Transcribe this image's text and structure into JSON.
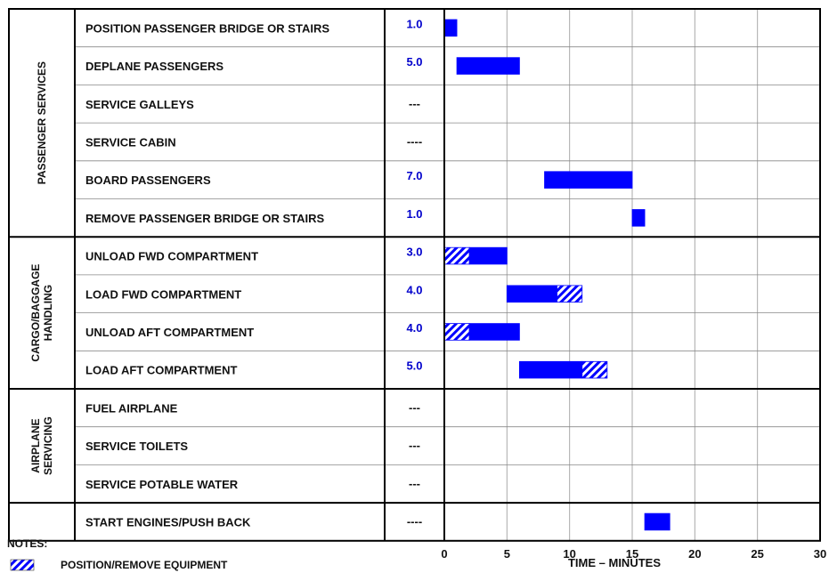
{
  "chart_data": {
    "type": "gantt",
    "x_axis": {
      "label": "TIME – MINUTES",
      "min": 0,
      "max": 30,
      "ticks": [
        0,
        5,
        10,
        15,
        20,
        25,
        30
      ],
      "grid": true
    },
    "groups": [
      {
        "name": "PASSENGER SERVICES",
        "lines": [
          "PASSENGER SERVICES"
        ],
        "row_start": 0,
        "row_count": 6
      },
      {
        "name": "CARGO/BAGGAGE HANDLING",
        "lines": [
          "CARGO/BAGGAGE",
          "HANDLING"
        ],
        "row_start": 6,
        "row_count": 4
      },
      {
        "name": "AIRPLANE SERVICING",
        "lines": [
          "AIRPLANE",
          "SERVICING"
        ],
        "row_start": 10,
        "row_count": 3
      },
      {
        "name": "",
        "lines": [],
        "row_start": 13,
        "row_count": 1
      }
    ],
    "tasks": [
      {
        "name": "POSITION PASSENGER BRIDGE OR STAIRS",
        "duration": "1.0",
        "segments": [
          {
            "start": 0,
            "end": 1,
            "style": "solid"
          }
        ]
      },
      {
        "name": "DEPLANE PASSENGERS",
        "duration": "5.0",
        "segments": [
          {
            "start": 1,
            "end": 6,
            "style": "solid"
          }
        ]
      },
      {
        "name": "SERVICE GALLEYS",
        "duration": "---",
        "segments": []
      },
      {
        "name": "SERVICE CABIN",
        "duration": "----",
        "segments": []
      },
      {
        "name": "BOARD PASSENGERS",
        "duration": "7.0",
        "segments": [
          {
            "start": 8,
            "end": 15,
            "style": "solid"
          }
        ]
      },
      {
        "name": "REMOVE PASSENGER BRIDGE OR STAIRS",
        "duration": "1.0",
        "segments": [
          {
            "start": 15,
            "end": 16,
            "style": "solid"
          }
        ]
      },
      {
        "name": "UNLOAD FWD COMPARTMENT",
        "duration": "3.0",
        "segments": [
          {
            "start": 0,
            "end": 2,
            "style": "hatched"
          },
          {
            "start": 2,
            "end": 5,
            "style": "solid"
          }
        ]
      },
      {
        "name": "LOAD FWD COMPARTMENT",
        "duration": "4.0",
        "segments": [
          {
            "start": 5,
            "end": 9,
            "style": "solid"
          },
          {
            "start": 9,
            "end": 11,
            "style": "hatched"
          }
        ]
      },
      {
        "name": "UNLOAD AFT COMPARTMENT",
        "duration": "4.0",
        "segments": [
          {
            "start": 0,
            "end": 2,
            "style": "hatched"
          },
          {
            "start": 2,
            "end": 6,
            "style": "solid"
          }
        ]
      },
      {
        "name": "LOAD AFT COMPARTMENT",
        "duration": "5.0",
        "segments": [
          {
            "start": 6,
            "end": 11,
            "style": "solid"
          },
          {
            "start": 11,
            "end": 13,
            "style": "hatched"
          }
        ]
      },
      {
        "name": "FUEL AIRPLANE",
        "duration": "---",
        "segments": []
      },
      {
        "name": "SERVICE TOILETS",
        "duration": "---",
        "segments": []
      },
      {
        "name": "SERVICE POTABLE WATER",
        "duration": "---",
        "segments": []
      },
      {
        "name": "START ENGINES/PUSH BACK",
        "duration": "----",
        "segments": [
          {
            "start": 16,
            "end": 18,
            "style": "solid"
          }
        ]
      }
    ],
    "notes_title": "NOTES:",
    "notes": [
      {
        "symbol": "hatched",
        "text": "POSITION/REMOVE EQUIPMENT"
      }
    ],
    "colors": {
      "bar": "#0000ff",
      "duration_text": "#0000cc",
      "grid": "#aaaaaa",
      "frame": "#000000"
    }
  }
}
